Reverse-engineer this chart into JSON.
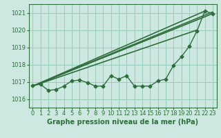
{
  "xlabel": "Graphe pression niveau de la mer (hPa)",
  "xlim": [
    -0.5,
    23.5
  ],
  "ylim": [
    1015.5,
    1021.5
  ],
  "yticks": [
    1016,
    1017,
    1018,
    1019,
    1020,
    1021
  ],
  "xticks": [
    0,
    1,
    2,
    3,
    4,
    5,
    6,
    7,
    8,
    9,
    10,
    11,
    12,
    13,
    14,
    15,
    16,
    17,
    18,
    19,
    20,
    21,
    22,
    23
  ],
  "bg_color": "#cce8e0",
  "grid_color": "#99ccbb",
  "line_color": "#2d6e3a",
  "main_series_x": [
    0,
    1,
    2,
    3,
    4,
    5,
    6,
    7,
    8,
    9,
    10,
    11,
    12,
    13,
    14,
    15,
    16,
    17,
    18,
    19,
    20,
    21,
    22,
    23
  ],
  "main_series_y": [
    1016.8,
    1016.85,
    1016.5,
    1016.55,
    1016.75,
    1017.05,
    1017.1,
    1016.95,
    1016.75,
    1016.75,
    1017.35,
    1017.15,
    1017.35,
    1016.75,
    1016.75,
    1016.75,
    1017.05,
    1017.15,
    1017.95,
    1018.45,
    1019.05,
    1019.95,
    1021.1,
    1020.95
  ],
  "trend_lines": [
    {
      "x": [
        0,
        23
      ],
      "y": [
        1016.75,
        1021.05
      ]
    },
    {
      "x": [
        0,
        22
      ],
      "y": [
        1016.75,
        1021.1
      ]
    },
    {
      "x": [
        0,
        21
      ],
      "y": [
        1016.75,
        1020.0
      ]
    },
    {
      "x": [
        0,
        23
      ],
      "y": [
        1016.75,
        1020.95
      ]
    }
  ],
  "tick_fontsize": 6,
  "label_fontsize": 7,
  "label_fontweight": "bold",
  "marker": "D",
  "markersize": 2.5,
  "linewidth": 1.0,
  "trend_linewidth": 1.2
}
